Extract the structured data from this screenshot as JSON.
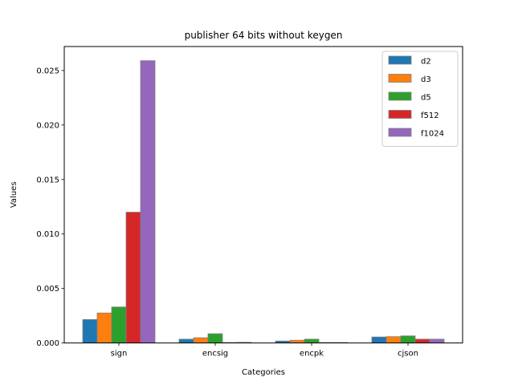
{
  "chart_data": {
    "type": "bar",
    "title": "publisher 64 bits without keygen",
    "xlabel": "Categories",
    "ylabel": "Values",
    "categories": [
      "sign",
      "encsig",
      "encpk",
      "cjson"
    ],
    "ylim": [
      0,
      0.0272
    ],
    "yticks": [
      0.0,
      0.005,
      0.01,
      0.015,
      0.02,
      0.025
    ],
    "ytick_labels": [
      "0.000",
      "0.005",
      "0.010",
      "0.015",
      "0.020",
      "0.025"
    ],
    "grid": false,
    "legend_position": "top-right",
    "series": [
      {
        "name": "d2",
        "color": "#1f77b4",
        "values": [
          0.00215,
          0.00035,
          0.00018,
          0.00055
        ]
      },
      {
        "name": "d3",
        "color": "#ff7f0e",
        "values": [
          0.00275,
          0.00048,
          0.00025,
          0.00058
        ]
      },
      {
        "name": "d5",
        "color": "#2ca02c",
        "values": [
          0.0033,
          0.00085,
          0.00035,
          0.00065
        ]
      },
      {
        "name": "f512",
        "color": "#d62728",
        "values": [
          0.012,
          3e-05,
          2e-05,
          0.00035
        ]
      },
      {
        "name": "f1024",
        "color": "#9467bd",
        "values": [
          0.0259,
          6e-05,
          4e-05,
          0.00035
        ]
      }
    ]
  }
}
